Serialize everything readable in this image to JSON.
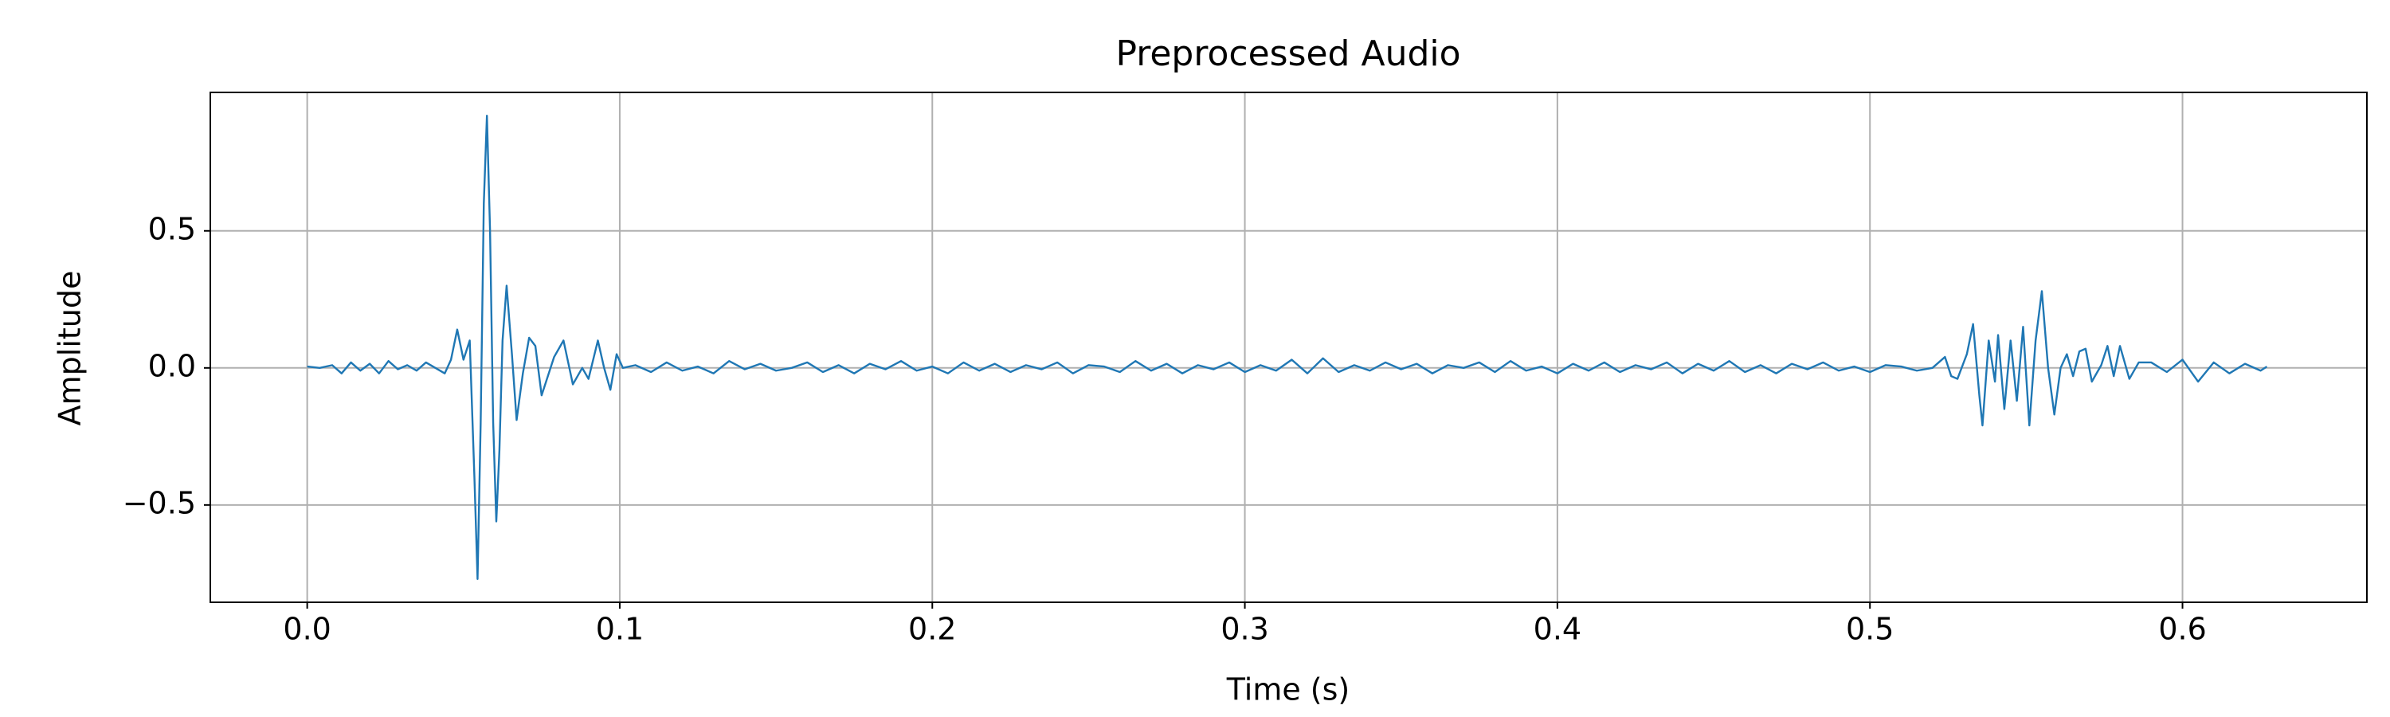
{
  "chart_data": {
    "type": "line",
    "title": "Preprocessed Audio",
    "xlabel": "Time (s)",
    "ylabel": "Amplitude",
    "color": "#1f77b4",
    "grid": true,
    "xlim": [
      -0.031,
      0.659
    ],
    "ylim": [
      -0.855,
      1.005
    ],
    "xticks": [
      {
        "value": 0,
        "label": "0.0"
      },
      0.1,
      0.2,
      0.3,
      0.4,
      0.5,
      0.6
    ],
    "yticks": [
      {
        "value": -0.5,
        "label": "−0.5"
      },
      {
        "value": 0,
        "label": "0.0"
      },
      0.5
    ],
    "x": [
      0,
      0.004,
      0.008,
      0.011,
      0.014,
      0.017,
      0.02,
      0.023,
      0.026,
      0.029,
      0.032,
      0.035,
      0.038,
      0.041,
      0.044,
      0.046,
      0.048,
      0.05,
      0.052,
      0.0535,
      0.0545,
      0.0555,
      0.0565,
      0.0575,
      0.0585,
      0.0595,
      0.0605,
      0.0615,
      0.0625,
      0.0638,
      0.0655,
      0.067,
      0.069,
      0.071,
      0.073,
      0.075,
      0.077,
      0.079,
      0.082,
      0.085,
      0.088,
      0.09,
      0.093,
      0.095,
      0.097,
      0.099,
      0.101,
      0.105,
      0.11,
      0.115,
      0.12,
      0.125,
      0.13,
      0.135,
      0.14,
      0.145,
      0.15,
      0.155,
      0.16,
      0.165,
      0.17,
      0.175,
      0.18,
      0.185,
      0.19,
      0.195,
      0.2,
      0.205,
      0.21,
      0.215,
      0.22,
      0.225,
      0.23,
      0.235,
      0.24,
      0.245,
      0.25,
      0.255,
      0.26,
      0.265,
      0.27,
      0.275,
      0.28,
      0.285,
      0.29,
      0.295,
      0.3,
      0.305,
      0.31,
      0.315,
      0.32,
      0.325,
      0.33,
      0.335,
      0.34,
      0.345,
      0.35,
      0.355,
      0.36,
      0.365,
      0.37,
      0.375,
      0.38,
      0.385,
      0.39,
      0.395,
      0.4,
      0.405,
      0.41,
      0.415,
      0.42,
      0.425,
      0.43,
      0.435,
      0.44,
      0.445,
      0.45,
      0.455,
      0.46,
      0.465,
      0.47,
      0.475,
      0.48,
      0.485,
      0.49,
      0.495,
      0.5,
      0.505,
      0.51,
      0.515,
      0.52,
      0.524,
      0.526,
      0.528,
      0.531,
      0.533,
      0.535,
      0.536,
      0.538,
      0.54,
      0.541,
      0.543,
      0.545,
      0.547,
      0.549,
      0.551,
      0.553,
      0.555,
      0.557,
      0.559,
      0.561,
      0.563,
      0.565,
      0.567,
      0.569,
      0.571,
      0.574,
      0.576,
      0.578,
      0.58,
      0.583,
      0.586,
      0.59,
      0.595,
      0.6,
      0.605,
      0.61,
      0.615,
      0.62,
      0.625,
      0.627
    ],
    "values": [
      0.005,
      0.0,
      0.01,
      -0.02,
      0.02,
      -0.01,
      0.015,
      -0.02,
      0.025,
      -0.005,
      0.01,
      -0.01,
      0.02,
      0.0,
      -0.02,
      0.03,
      0.14,
      0.03,
      0.1,
      -0.4,
      -0.77,
      -0.2,
      0.6,
      0.92,
      0.5,
      -0.2,
      -0.56,
      -0.3,
      0.1,
      0.3,
      0.05,
      -0.19,
      -0.02,
      0.11,
      0.08,
      -0.1,
      -0.03,
      0.04,
      0.1,
      -0.06,
      0.0,
      -0.04,
      0.1,
      0.0,
      -0.08,
      0.05,
      0.0,
      0.01,
      -0.015,
      0.02,
      -0.01,
      0.005,
      -0.02,
      0.025,
      -0.005,
      0.015,
      -0.01,
      0.0,
      0.02,
      -0.015,
      0.01,
      -0.02,
      0.015,
      -0.005,
      0.025,
      -0.01,
      0.005,
      -0.02,
      0.02,
      -0.01,
      0.015,
      -0.015,
      0.01,
      -0.005,
      0.02,
      -0.02,
      0.01,
      0.005,
      -0.015,
      0.025,
      -0.01,
      0.015,
      -0.02,
      0.01,
      -0.005,
      0.02,
      -0.015,
      0.01,
      -0.01,
      0.03,
      -0.02,
      0.035,
      -0.015,
      0.01,
      -0.01,
      0.02,
      -0.005,
      0.015,
      -0.02,
      0.01,
      0.0,
      0.02,
      -0.015,
      0.025,
      -0.01,
      0.005,
      -0.02,
      0.015,
      -0.01,
      0.02,
      -0.015,
      0.01,
      -0.005,
      0.02,
      -0.02,
      0.015,
      -0.01,
      0.025,
      -0.015,
      0.01,
      -0.02,
      0.015,
      -0.005,
      0.02,
      -0.01,
      0.005,
      -0.015,
      0.01,
      0.005,
      -0.01,
      0.0,
      0.04,
      -0.03,
      -0.04,
      0.05,
      0.16,
      -0.1,
      -0.21,
      0.1,
      -0.05,
      0.12,
      -0.15,
      0.1,
      -0.12,
      0.15,
      -0.21,
      0.1,
      0.28,
      0.0,
      -0.17,
      0.0,
      0.05,
      -0.03,
      0.06,
      0.07,
      -0.05,
      0.01,
      0.08,
      -0.03,
      0.08,
      -0.04,
      0.02,
      0.02,
      -0.015,
      0.03,
      -0.05,
      0.02,
      -0.02,
      0.015,
      -0.01,
      0.005
    ]
  }
}
